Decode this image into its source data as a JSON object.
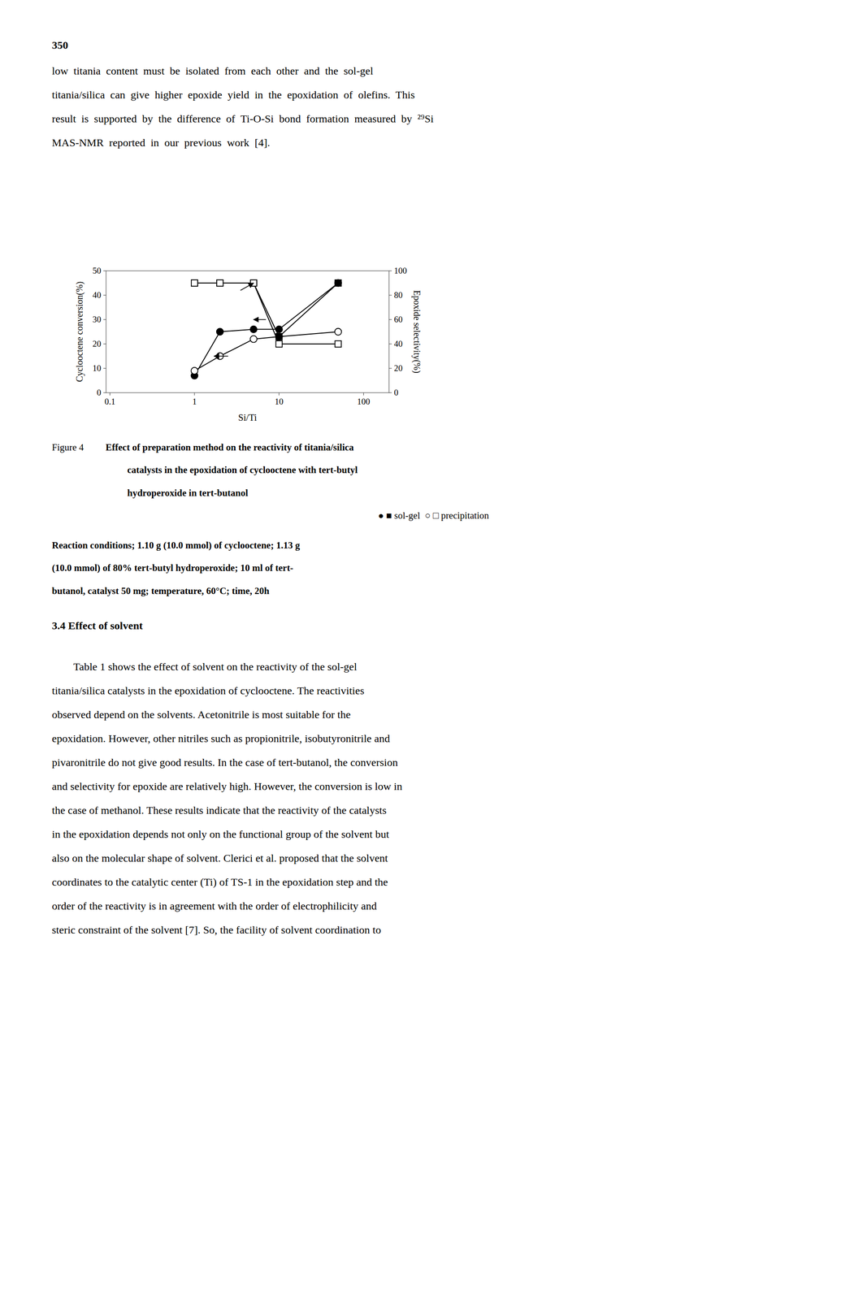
{
  "page": {
    "page_number": "350",
    "paragraph_1": [
      "low  titania  content  must  be  isolated  from  each  other  and  the  sol-gel",
      "titania/silica  can  give  higher  epoxide  yield  in  the  epoxidation  of  olefins.  This",
      "result  is  supported  by  the  difference  of  Ti-O-Si  bond  formation  measured  by  ²⁹Si",
      "MAS-NMR  reported  in  our  previous  work  [4]."
    ],
    "figure_label": "Figure 4",
    "caption": [
      "Effect of preparation method on the reactivity of titania/silica",
      "catalysts in the epoxidation of cyclooctene with tert-butyl",
      "hydroperoxide in tert-butanol"
    ],
    "legend_text": "● ■ sol-gel  ○ □ precipitation",
    "conditions": [
      "Reaction conditions; 1.10 g (10.0 mmol) of cyclooctene; 1.13 g",
      "(10.0 mmol) of 80% tert-butyl hydroperoxide; 10 ml of tert-",
      "butanol, catalyst 50 mg; temperature, 60°C; time, 20h"
    ],
    "section_header": "3.4 Effect of solvent",
    "paragraph_2": [
      "        Table 1 shows the effect of solvent on the reactivity of the sol-gel",
      "titania/silica catalysts in the epoxidation of cyclooctene. The reactivities",
      "observed depend on the solvents. Acetonitrile is most suitable for the",
      "epoxidation. However, other nitriles such as propionitrile, isobutyronitrile and",
      "pivaronitrile do not give good results. In the case of tert-butanol, the conversion",
      "and selectivity for epoxide are relatively high. However, the conversion is low in",
      "the case of methanol. These results indicate that the reactivity of the catalysts",
      "in the epoxidation depends not only on the functional group of the solvent but",
      "also on the molecular shape of solvent. Clerici et al. proposed that the solvent",
      "coordinates to the catalytic center (Ti) of TS-1 in the epoxidation step and the",
      "order of the reactivity is in agreement with the order of electrophilicity and",
      "steric constraint of the solvent [7]. So, the facility of solvent coordination to"
    ]
  },
  "chart_data": {
    "type": "line",
    "log": "x",
    "grid": false,
    "x_label": "Si/Ti",
    "y_label": "Cyclooctene conversion(%)",
    "y2_label": "Epoxide selectivity(%)",
    "x": [
      1,
      2,
      5,
      10,
      50
    ],
    "xlim": [
      0.09,
      200
    ],
    "xticks": [
      0.1,
      1,
      10,
      100
    ],
    "ylim": [
      0,
      50
    ],
    "yticks": [
      0,
      10,
      20,
      30,
      40,
      50
    ],
    "y2lim": [
      0,
      100
    ],
    "y2ticks": [
      0,
      20,
      40,
      60,
      80,
      100
    ],
    "series": [
      {
        "values": [
          7,
          25,
          26,
          26,
          45
        ],
        "color": "#000000",
        "marker": "circle",
        "line_style": "solid"
      },
      {
        "values": [
          9,
          15,
          22,
          23,
          25
        ],
        "color": "#000000",
        "marker": "circle-open",
        "line_style": "solid"
      },
      {
        "values": [
          90,
          90,
          90,
          46,
          90
        ],
        "color": "#000000",
        "marker": "square",
        "line_style": "solid",
        "axis": "y2"
      },
      {
        "values": [
          90,
          90,
          90,
          40,
          40
        ],
        "color": "#000000",
        "marker": "square-open",
        "line_style": "solid",
        "axis": "y2"
      }
    ],
    "annotations": [
      {
        "x": 1.7,
        "y": 15,
        "x_from": 2.5,
        "y_from": 15
      },
      {
        "x": 5,
        "y": 60,
        "x_from": 7,
        "y_from": 60,
        "axis": "y2"
      },
      {
        "x": 5,
        "y": 90,
        "x_from": 3.5,
        "y_from": 84,
        "axis": "y2"
      }
    ]
  }
}
